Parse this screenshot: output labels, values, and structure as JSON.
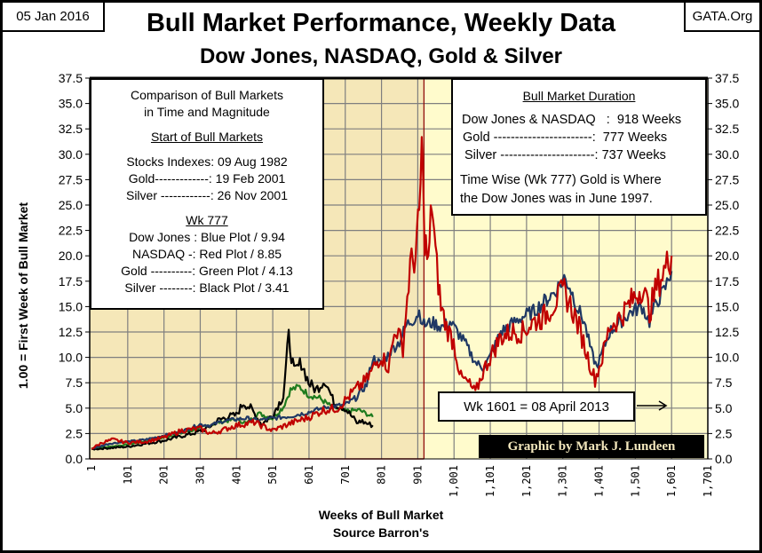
{
  "header": {
    "date": "05 Jan 2016",
    "site": "GATA.Org",
    "title": "Bull Market Performance, Weekly Data",
    "subtitle": "Dow Jones, NASDAQ, Gold & Silver"
  },
  "left_box": {
    "line1": "Comparison of Bull Markets",
    "line2": "in Time and Magnitude",
    "start_heading": "Start of Bull Markets",
    "starts": [
      "Stocks Indexes: 09 Aug 1982",
      "Gold-------------: 19 Feb 2001",
      "Silver ------------: 26 Nov 2001"
    ],
    "wk_heading": "Wk 777",
    "wk_values": [
      "Dow Jones : Blue Plot / 9.94",
      "NASDAQ -: Red Plot / 8.85",
      "Gold ----------: Green Plot / 4.13",
      "Silver --------: Black Plot / 3.41"
    ]
  },
  "right_box": {
    "heading": "Bull Market Duration",
    "durations": [
      "Dow Jones & NASDAQ   :  918 Weeks",
      "Gold -----------------------:  777 Weeks",
      "Silver ----------------------: 737 Weeks"
    ],
    "note1": "Time Wise (Wk 777) Gold is Where",
    "note2": "the Dow Jones was in June 1997."
  },
  "week_note": "Wk 1601 = 08 April 2013",
  "credit": "Graphic by Mark J. Lundeen",
  "colors": {
    "dow": "#1f3864",
    "nasdaq": "#c00000",
    "gold": "#1e7b1e",
    "silver": "#000000",
    "shade_early": "#f5e7b8",
    "shade_late": "#fffbcc",
    "grid": "#7f7f7f"
  },
  "chart_data": {
    "type": "line",
    "title": "Bull Market Performance, Weekly Data",
    "subtitle": "Dow Jones, NASDAQ, Gold & Silver",
    "xlabel": "Weeks of Bull Market",
    "xlabel2": "Source Barron's",
    "ylabel": "1.00 = First Week of Bull Market",
    "xlim": [
      1,
      1701
    ],
    "ylim": [
      0,
      37.5
    ],
    "x_ticks": [
      "1",
      "101",
      "201",
      "301",
      "401",
      "501",
      "601",
      "701",
      "801",
      "901",
      "1,001",
      "1,101",
      "1,201",
      "1,301",
      "1,401",
      "1,501",
      "1,601",
      "1,701"
    ],
    "y_ticks": [
      "0.0",
      "2.5",
      "5.0",
      "7.5",
      "10.0",
      "12.5",
      "15.0",
      "17.5",
      "20.0",
      "22.5",
      "25.0",
      "27.5",
      "30.0",
      "32.5",
      "35.0",
      "37.5"
    ],
    "grid": true,
    "shaded_until_week": 918,
    "marker_week": 918,
    "series": [
      {
        "name": "Dow Jones",
        "color_key": "dow",
        "points": [
          [
            1,
            1.0
          ],
          [
            50,
            1.5
          ],
          [
            100,
            1.7
          ],
          [
            150,
            1.9
          ],
          [
            200,
            2.3
          ],
          [
            250,
            2.7
          ],
          [
            300,
            3.4
          ],
          [
            330,
            3.3
          ],
          [
            360,
            3.7
          ],
          [
            400,
            3.9
          ],
          [
            430,
            4.0
          ],
          [
            460,
            3.8
          ],
          [
            500,
            4.0
          ],
          [
            550,
            4.2
          ],
          [
            600,
            4.6
          ],
          [
            650,
            5.1
          ],
          [
            700,
            5.3
          ],
          [
            730,
            6.0
          ],
          [
            760,
            7.3
          ],
          [
            777,
            9.94
          ],
          [
            800,
            9.3
          ],
          [
            830,
            10.8
          ],
          [
            850,
            11.5
          ],
          [
            870,
            13.2
          ],
          [
            890,
            13.8
          ],
          [
            905,
            14.5
          ],
          [
            918,
            13.2
          ],
          [
            940,
            13.4
          ],
          [
            970,
            13.0
          ],
          [
            990,
            13.5
          ],
          [
            1010,
            12.5
          ],
          [
            1030,
            11.5
          ],
          [
            1060,
            9.5
          ],
          [
            1080,
            9.0
          ],
          [
            1100,
            10.0
          ],
          [
            1130,
            12.5
          ],
          [
            1160,
            13.3
          ],
          [
            1190,
            14.0
          ],
          [
            1220,
            14.5
          ],
          [
            1250,
            15.5
          ],
          [
            1280,
            16.5
          ],
          [
            1305,
            17.8
          ],
          [
            1320,
            17.0
          ],
          [
            1340,
            15.0
          ],
          [
            1360,
            13.5
          ],
          [
            1380,
            10.5
          ],
          [
            1395,
            9.0
          ],
          [
            1410,
            10.5
          ],
          [
            1430,
            12.5
          ],
          [
            1460,
            13.5
          ],
          [
            1490,
            14.5
          ],
          [
            1520,
            15.0
          ],
          [
            1540,
            13.5
          ],
          [
            1560,
            15.5
          ],
          [
            1580,
            16.5
          ],
          [
            1601,
            18.5
          ]
        ]
      },
      {
        "name": "NASDAQ",
        "color_key": "nasdaq",
        "points": [
          [
            1,
            1.0
          ],
          [
            30,
            1.6
          ],
          [
            60,
            1.9
          ],
          [
            100,
            1.6
          ],
          [
            150,
            1.7
          ],
          [
            200,
            2.1
          ],
          [
            250,
            2.8
          ],
          [
            300,
            3.0
          ],
          [
            330,
            2.5
          ],
          [
            360,
            2.8
          ],
          [
            400,
            3.3
          ],
          [
            450,
            3.6
          ],
          [
            500,
            2.8
          ],
          [
            550,
            3.5
          ],
          [
            600,
            4.1
          ],
          [
            640,
            4.8
          ],
          [
            680,
            5.0
          ],
          [
            720,
            6.5
          ],
          [
            760,
            7.8
          ],
          [
            777,
            8.85
          ],
          [
            800,
            10.2
          ],
          [
            820,
            9.0
          ],
          [
            840,
            13.0
          ],
          [
            860,
            11.0
          ],
          [
            880,
            19.0
          ],
          [
            895,
            20.0
          ],
          [
            905,
            24.0
          ],
          [
            912,
            30.5
          ],
          [
            920,
            22.0
          ],
          [
            930,
            19.0
          ],
          [
            940,
            25.5
          ],
          [
            950,
            20.0
          ],
          [
            965,
            15.0
          ],
          [
            980,
            13.0
          ],
          [
            1000,
            11.5
          ],
          [
            1020,
            8.0
          ],
          [
            1040,
            7.5
          ],
          [
            1060,
            6.5
          ],
          [
            1080,
            8.5
          ],
          [
            1100,
            10.0
          ],
          [
            1130,
            12.0
          ],
          [
            1160,
            12.5
          ],
          [
            1190,
            12.5
          ],
          [
            1220,
            13.5
          ],
          [
            1250,
            14.0
          ],
          [
            1280,
            15.5
          ],
          [
            1305,
            16.5
          ],
          [
            1330,
            14.5
          ],
          [
            1350,
            12.5
          ],
          [
            1370,
            10.0
          ],
          [
            1390,
            7.8
          ],
          [
            1410,
            10.0
          ],
          [
            1430,
            13.0
          ],
          [
            1460,
            14.0
          ],
          [
            1490,
            15.5
          ],
          [
            1520,
            17.0
          ],
          [
            1540,
            14.5
          ],
          [
            1560,
            17.0
          ],
          [
            1580,
            18.5
          ],
          [
            1601,
            20.0
          ]
        ]
      },
      {
        "name": "Gold",
        "color_key": "gold",
        "points": [
          [
            1,
            1.0
          ],
          [
            100,
            1.4
          ],
          [
            200,
            2.1
          ],
          [
            300,
            3.0
          ],
          [
            350,
            3.6
          ],
          [
            400,
            3.9
          ],
          [
            430,
            3.5
          ],
          [
            460,
            4.5
          ],
          [
            500,
            4.0
          ],
          [
            530,
            5.1
          ],
          [
            550,
            6.8
          ],
          [
            575,
            7.1
          ],
          [
            600,
            6.3
          ],
          [
            630,
            6.0
          ],
          [
            660,
            5.2
          ],
          [
            700,
            4.7
          ],
          [
            740,
            4.8
          ],
          [
            777,
            4.13
          ]
        ]
      },
      {
        "name": "Silver",
        "color_key": "silver",
        "points": [
          [
            1,
            0.95
          ],
          [
            100,
            1.2
          ],
          [
            200,
            1.8
          ],
          [
            290,
            2.6
          ],
          [
            320,
            3.0
          ],
          [
            350,
            3.8
          ],
          [
            380,
            4.2
          ],
          [
            400,
            4.3
          ],
          [
            420,
            5.5
          ],
          [
            440,
            5.0
          ],
          [
            470,
            3.4
          ],
          [
            500,
            4.3
          ],
          [
            530,
            6.2
          ],
          [
            545,
            12.0
          ],
          [
            560,
            8.5
          ],
          [
            580,
            9.5
          ],
          [
            600,
            7.5
          ],
          [
            620,
            6.8
          ],
          [
            645,
            7.8
          ],
          [
            670,
            5.5
          ],
          [
            700,
            5.0
          ],
          [
            740,
            3.8
          ],
          [
            737,
            3.41
          ],
          [
            760,
            3.5
          ],
          [
            777,
            3.3
          ]
        ]
      }
    ]
  }
}
